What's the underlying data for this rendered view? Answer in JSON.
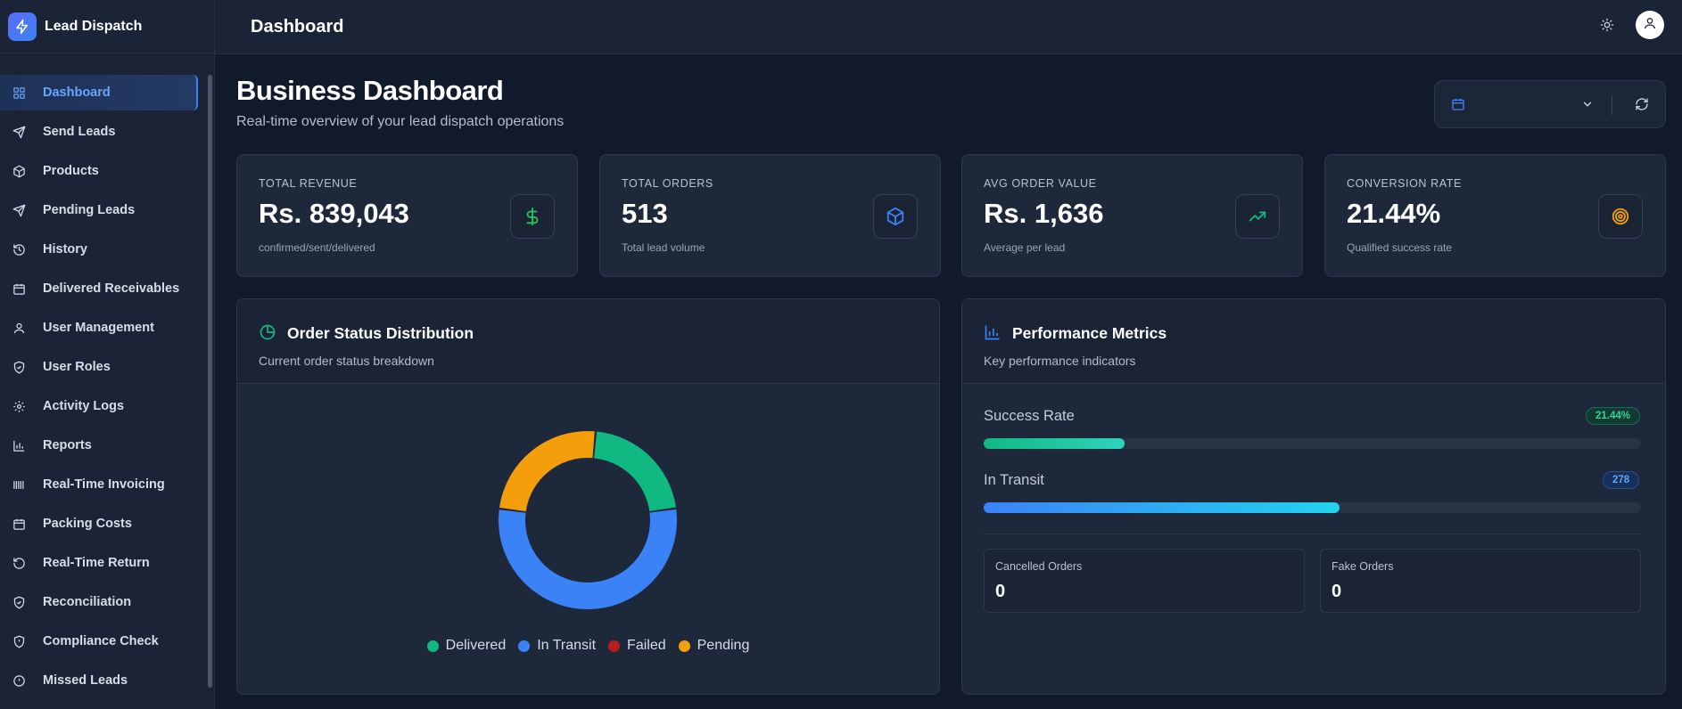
{
  "app": {
    "name": "Lead Dispatch"
  },
  "header": {
    "title": "Dashboard"
  },
  "sidebar": {
    "items": [
      {
        "label": "Dashboard",
        "icon": "grid-icon"
      },
      {
        "label": "Send Leads",
        "icon": "send-icon"
      },
      {
        "label": "Products",
        "icon": "box-icon"
      },
      {
        "label": "Pending Leads",
        "icon": "send-icon"
      },
      {
        "label": "History",
        "icon": "history-icon"
      },
      {
        "label": "Delivered Receivables",
        "icon": "calendar-icon"
      },
      {
        "label": "User Management",
        "icon": "user-icon"
      },
      {
        "label": "User Roles",
        "icon": "shield-check-icon"
      },
      {
        "label": "Activity Logs",
        "icon": "gear-icon"
      },
      {
        "label": "Reports",
        "icon": "bar-chart-icon"
      },
      {
        "label": "Real-Time Invoicing",
        "icon": "barcode-icon"
      },
      {
        "label": "Packing Costs",
        "icon": "calendar-icon"
      },
      {
        "label": "Real-Time Return",
        "icon": "rotate-ccw-icon"
      },
      {
        "label": "Reconciliation",
        "icon": "shield-check-icon"
      },
      {
        "label": "Compliance Check",
        "icon": "shield-alert-icon"
      },
      {
        "label": "Missed Leads",
        "icon": "alert-circle-icon"
      }
    ]
  },
  "page": {
    "title": "Business Dashboard",
    "subtitle": "Real-time overview of your lead dispatch operations"
  },
  "stats": [
    {
      "label": "TOTAL REVENUE",
      "value": "Rs. 839,043",
      "sub": "confirmed/sent/delivered",
      "icon": "dollar-icon",
      "color": "#22c55e"
    },
    {
      "label": "TOTAL ORDERS",
      "value": "513",
      "sub": "Total lead volume",
      "icon": "package-icon",
      "color": "#3b82f6"
    },
    {
      "label": "AVG ORDER VALUE",
      "value": "Rs. 1,636",
      "sub": "Average per lead",
      "icon": "trending-up-icon",
      "color": "#10b981"
    },
    {
      "label": "CONVERSION RATE",
      "value": "21.44%",
      "sub": "Qualified success rate",
      "icon": "target-icon",
      "color": "#f59e0b"
    }
  ],
  "order_status": {
    "title": "Order Status Distribution",
    "subtitle": "Current order status breakdown",
    "legend": [
      {
        "label": "Delivered",
        "color": "#10b981"
      },
      {
        "label": "In Transit",
        "color": "#3b82f6"
      },
      {
        "label": "Failed",
        "color": "#b91c1c"
      },
      {
        "label": "Pending",
        "color": "#f59e0b"
      }
    ]
  },
  "chart_data": {
    "type": "pie",
    "categories": [
      "Delivered",
      "In Transit",
      "Failed",
      "Pending"
    ],
    "values": [
      110,
      278,
      0,
      125
    ],
    "colors": [
      "#10b981",
      "#3b82f6",
      "#b91c1c",
      "#f59e0b"
    ]
  },
  "performance": {
    "title": "Performance Metrics",
    "subtitle": "Key performance indicators",
    "metrics": [
      {
        "label": "Success Rate",
        "badge": "21.44%",
        "fraction": 0.2144
      },
      {
        "label": "In Transit",
        "badge": "278",
        "fraction": 0.542
      }
    ],
    "cards": [
      {
        "label": "Cancelled Orders",
        "value": "0"
      },
      {
        "label": "Fake Orders",
        "value": "0"
      }
    ]
  }
}
